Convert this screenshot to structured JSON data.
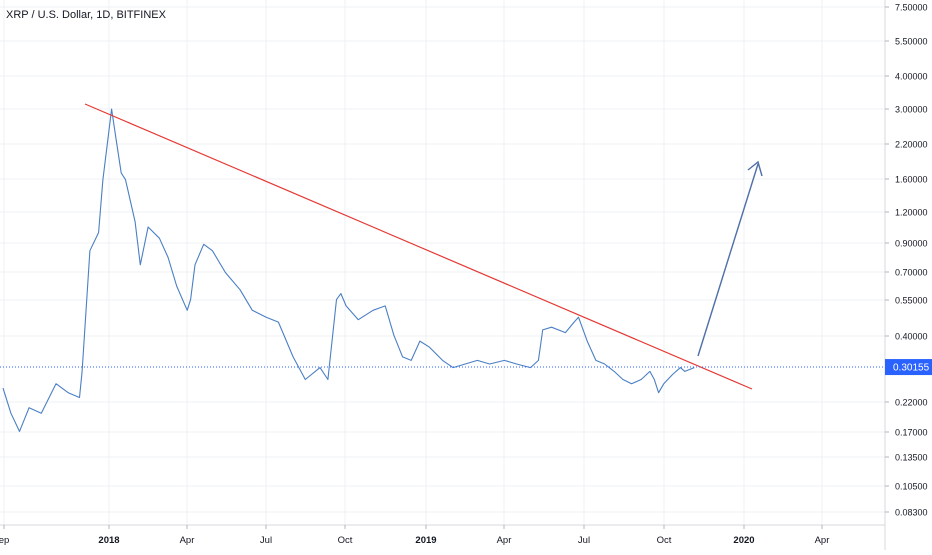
{
  "chart_data": {
    "type": "line",
    "title": "XRP / U.S. Dollar, 1D, BITFINEX",
    "x_ticks": [
      "ep",
      "2018",
      "Apr",
      "Jul",
      "Oct",
      "2019",
      "Apr",
      "Jul",
      "Oct",
      "2020",
      "Apr"
    ],
    "y_ticks": [
      "7.50000",
      "5.50000",
      "4.00000",
      "3.00000",
      "2.20000",
      "1.60000",
      "1.20000",
      "0.90000",
      "0.70000",
      "0.55000",
      "0.40000",
      "0.22000",
      "0.17000",
      "0.13500",
      "0.10500",
      "0.08300"
    ],
    "y_scale": "log",
    "current_price": "0.30155",
    "colors": {
      "price_line": "#4a7fc4",
      "trend_line": "#e53935",
      "arrow": "#4f6fa8",
      "price_badge": "#2962ff",
      "grid": "#eef0f3",
      "axis_text": "#131722"
    },
    "series": [
      {
        "x": [
          "2017-09-01",
          "2017-09-10",
          "2017-09-20",
          "2017-10-01",
          "2017-10-15",
          "2017-11-01",
          "2017-11-15",
          "2017-11-28",
          "2017-12-01",
          "2017-12-10",
          "2017-12-20",
          "2017-12-25",
          "2017-12-30",
          "2018-01-04",
          "2018-01-10",
          "2018-01-15",
          "2018-01-20",
          "2018-01-31",
          "2018-02-06",
          "2018-02-15",
          "2018-02-28",
          "2018-03-10",
          "2018-03-20",
          "2018-04-01",
          "2018-04-05",
          "2018-04-10",
          "2018-04-20",
          "2018-04-30",
          "2018-05-15",
          "2018-06-01",
          "2018-06-15",
          "2018-07-01",
          "2018-07-15",
          "2018-08-01",
          "2018-08-15",
          "2018-09-01",
          "2018-09-10",
          "2018-09-20",
          "2018-09-25",
          "2018-10-01",
          "2018-10-15",
          "2018-11-01",
          "2018-11-15",
          "2018-11-25",
          "2018-12-05",
          "2018-12-15",
          "2018-12-25",
          "2019-01-05",
          "2019-01-20",
          "2019-02-01",
          "2019-02-15",
          "2019-03-01",
          "2019-03-15",
          "2019-04-01",
          "2019-04-15",
          "2019-05-01",
          "2019-05-10",
          "2019-05-15",
          "2019-05-25",
          "2019-06-10",
          "2019-06-20",
          "2019-06-25",
          "2019-07-05",
          "2019-07-15",
          "2019-07-25",
          "2019-08-05",
          "2019-08-15",
          "2019-08-25",
          "2019-09-05",
          "2019-09-15",
          "2019-09-20",
          "2019-09-25",
          "2019-10-01",
          "2019-10-10",
          "2019-10-15",
          "2019-10-20",
          "2019-10-25",
          "2019-11-05"
        ],
        "y": [
          0.25,
          0.2,
          0.17,
          0.21,
          0.2,
          0.26,
          0.24,
          0.23,
          0.29,
          0.85,
          1.0,
          1.6,
          2.2,
          3.0,
          2.2,
          1.7,
          1.6,
          1.1,
          0.75,
          1.05,
          0.95,
          0.8,
          0.62,
          0.5,
          0.55,
          0.75,
          0.9,
          0.85,
          0.7,
          0.6,
          0.5,
          0.47,
          0.45,
          0.33,
          0.27,
          0.3,
          0.27,
          0.55,
          0.58,
          0.52,
          0.46,
          0.5,
          0.52,
          0.4,
          0.33,
          0.32,
          0.38,
          0.36,
          0.32,
          0.3,
          0.31,
          0.32,
          0.31,
          0.32,
          0.31,
          0.3,
          0.32,
          0.42,
          0.43,
          0.41,
          0.45,
          0.47,
          0.38,
          0.32,
          0.31,
          0.29,
          0.27,
          0.26,
          0.27,
          0.29,
          0.27,
          0.24,
          0.26,
          0.28,
          0.29,
          0.3,
          0.29,
          0.3
        ]
      }
    ]
  }
}
